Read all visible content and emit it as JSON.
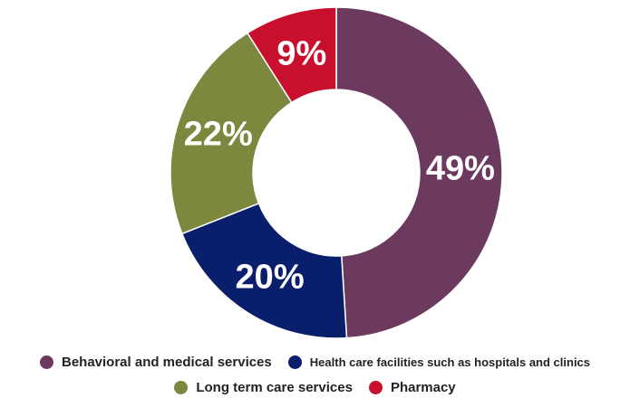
{
  "chart_data": {
    "type": "pie",
    "style": "donut",
    "categories": [
      "Behavioral and medical services",
      "Health care facilities such as hospitals and clinics",
      "Long term care services",
      "Pharmacy"
    ],
    "values": [
      49,
      20,
      22,
      9
    ],
    "labels": [
      "49%",
      "20%",
      "22%",
      "9%"
    ],
    "colors": [
      "#6b3a5e",
      "#0a1f6b",
      "#7d873e",
      "#c8102e"
    ],
    "legend_position": "bottom"
  }
}
